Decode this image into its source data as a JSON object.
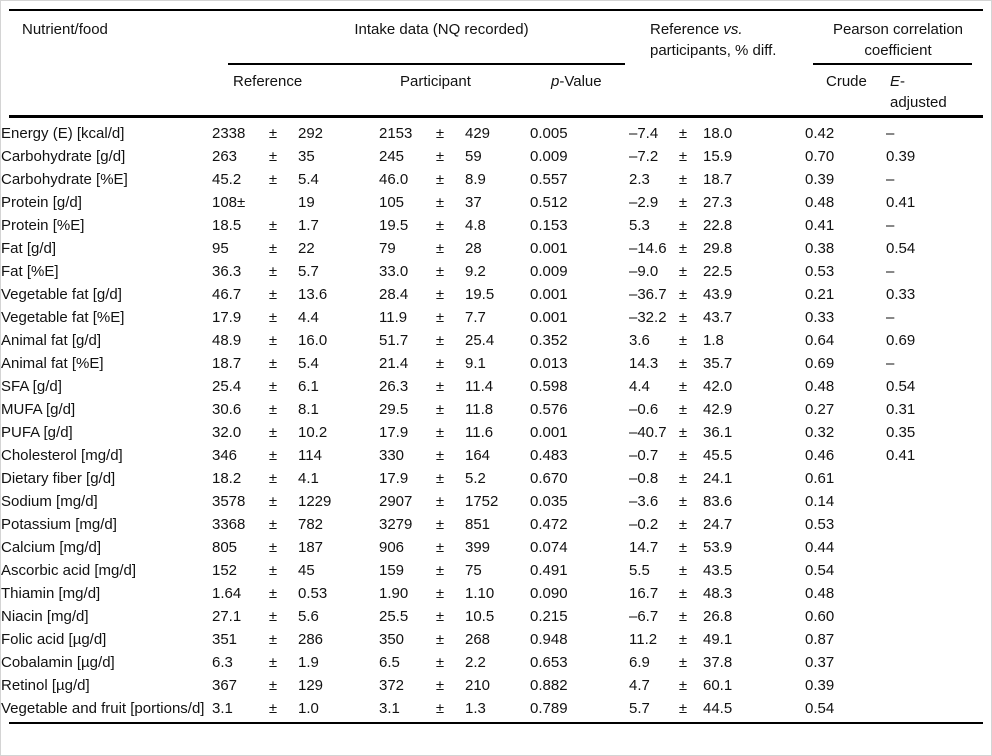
{
  "page": {
    "background": "#ffffff",
    "outer_border_color": "#d4d4d4",
    "rule_color": "#000000",
    "text_color": "#121212"
  },
  "header": {
    "nutrient_col": "Nutrient/food",
    "intake_group": "Intake data (NQ recorded)",
    "reference_col": "Reference",
    "participant_col": "Participant",
    "pvalue_italic": "p",
    "pvalue_rest": "-Value",
    "diff_line1_prefix": "Reference ",
    "diff_line1_italic": "vs.",
    "diff_line2": "participants, % diff.",
    "pearson_group": "Pearson correlation coefficient",
    "crude_col": "Crude",
    "eadj_line1_italic": "E",
    "eadj_line1_rest": "-",
    "eadj_line2": "adjusted"
  },
  "table": {
    "plus_minus_symbol": "±",
    "dash_placeholder": "–",
    "rows": [
      {
        "label": "Energy (E) [kcal/d]",
        "ref": {
          "v": "2338",
          "pm": "±",
          "sd": "292"
        },
        "part": {
          "v": "2153",
          "pm": "±",
          "sd": "429"
        },
        "p": "0.005",
        "diff": {
          "v": "–7.4",
          "pm": "±",
          "sd": "18.0"
        },
        "crude": "0.42",
        "eadj": "–"
      },
      {
        "label": "Carbohydrate [g/d]",
        "ref": {
          "v": "263",
          "pm": "±",
          "sd": "35"
        },
        "part": {
          "v": "245",
          "pm": "±",
          "sd": "59"
        },
        "p": "0.009",
        "diff": {
          "v": "–7.2",
          "pm": "±",
          "sd": "15.9"
        },
        "crude": "0.70",
        "eadj": "0.39"
      },
      {
        "label": "Carbohydrate [%E]",
        "ref": {
          "v": "45.2",
          "pm": "±",
          "sd": "5.4"
        },
        "part": {
          "v": "46.0",
          "pm": "±",
          "sd": "8.9"
        },
        "p": "0.557",
        "diff": {
          "v": "2.3",
          "pm": "±",
          "sd": "18.7"
        },
        "crude": "0.39",
        "eadj": "–"
      },
      {
        "label": "Protein [g/d]",
        "ref": {
          "v": "108±",
          "pm": "",
          "sd": "19"
        },
        "part": {
          "v": "105",
          "pm": "±",
          "sd": "37"
        },
        "p": "0.512",
        "diff": {
          "v": "–2.9",
          "pm": "±",
          "sd": "27.3"
        },
        "crude": "0.48",
        "eadj": "0.41"
      },
      {
        "label": "Protein [%E]",
        "ref": {
          "v": "18.5",
          "pm": "±",
          "sd": "1.7"
        },
        "part": {
          "v": "19.5",
          "pm": "±",
          "sd": "4.8"
        },
        "p": "0.153",
        "diff": {
          "v": "5.3",
          "pm": "±",
          "sd": "22.8"
        },
        "crude": "0.41",
        "eadj": "–"
      },
      {
        "label": "Fat [g/d]",
        "ref": {
          "v": "95",
          "pm": "±",
          "sd": "22"
        },
        "part": {
          "v": "79",
          "pm": "±",
          "sd": "28"
        },
        "p": "0.001",
        "diff": {
          "v": "–14.6",
          "pm": "±",
          "sd": "29.8"
        },
        "crude": "0.38",
        "eadj": "0.54"
      },
      {
        "label": "Fat [%E]",
        "ref": {
          "v": "36.3",
          "pm": "±",
          "sd": "5.7"
        },
        "part": {
          "v": "33.0",
          "pm": "±",
          "sd": "9.2"
        },
        "p": "0.009",
        "diff": {
          "v": "–9.0",
          "pm": "±",
          "sd": "22.5"
        },
        "crude": "0.53",
        "eadj": "–"
      },
      {
        "label": "Vegetable fat [g/d]",
        "ref": {
          "v": "46.7",
          "pm": "±",
          "sd": "13.6"
        },
        "part": {
          "v": "28.4",
          "pm": "±",
          "sd": "19.5"
        },
        "p": "0.001",
        "diff": {
          "v": "–36.7",
          "pm": "±",
          "sd": "43.9"
        },
        "crude": "0.21",
        "eadj": "0.33"
      },
      {
        "label": "Vegetable fat [%E]",
        "ref": {
          "v": "17.9",
          "pm": "±",
          "sd": "4.4"
        },
        "part": {
          "v": "11.9",
          "pm": "±",
          "sd": "7.7"
        },
        "p": "0.001",
        "diff": {
          "v": "–32.2",
          "pm": "±",
          "sd": "43.7"
        },
        "crude": "0.33",
        "eadj": "–"
      },
      {
        "label": "Animal fat [g/d]",
        "ref": {
          "v": "48.9",
          "pm": "±",
          "sd": "16.0"
        },
        "part": {
          "v": "51.7",
          "pm": "±",
          "sd": "25.4"
        },
        "p": "0.352",
        "diff": {
          "v": "3.6",
          "pm": "±",
          "sd": "1.8"
        },
        "crude": "0.64",
        "eadj": "0.69"
      },
      {
        "label": "Animal fat [%E]",
        "ref": {
          "v": "18.7",
          "pm": "±",
          "sd": "5.4"
        },
        "part": {
          "v": "21.4",
          "pm": "±",
          "sd": "9.1"
        },
        "p": "0.013",
        "diff": {
          "v": "14.3",
          "pm": "±",
          "sd": "35.7"
        },
        "crude": "0.69",
        "eadj": "–"
      },
      {
        "label": "SFA [g/d]",
        "ref": {
          "v": "25.4",
          "pm": "±",
          "sd": "6.1"
        },
        "part": {
          "v": "26.3",
          "pm": "±",
          "sd": "11.4"
        },
        "p": "0.598",
        "diff": {
          "v": "4.4",
          "pm": "±",
          "sd": "42.0"
        },
        "crude": "0.48",
        "eadj": "0.54"
      },
      {
        "label": "MUFA [g/d]",
        "ref": {
          "v": "30.6",
          "pm": "±",
          "sd": "8.1"
        },
        "part": {
          "v": "29.5",
          "pm": "±",
          "sd": "11.8"
        },
        "p": "0.576",
        "diff": {
          "v": "–0.6",
          "pm": "±",
          "sd": "42.9"
        },
        "crude": "0.27",
        "eadj": "0.31"
      },
      {
        "label": "PUFA [g/d]",
        "ref": {
          "v": "32.0",
          "pm": "±",
          "sd": "10.2"
        },
        "part": {
          "v": "17.9",
          "pm": "±",
          "sd": "11.6"
        },
        "p": "0.001",
        "diff": {
          "v": "–40.7",
          "pm": "±",
          "sd": "36.1"
        },
        "crude": "0.32",
        "eadj": "0.35"
      },
      {
        "label": "Cholesterol [mg/d]",
        "ref": {
          "v": "346",
          "pm": "±",
          "sd": "114"
        },
        "part": {
          "v": "330",
          "pm": "±",
          "sd": "164"
        },
        "p": "0.483",
        "diff": {
          "v": "–0.7",
          "pm": "±",
          "sd": "45.5"
        },
        "crude": "0.46",
        "eadj": "0.41"
      },
      {
        "label": "Dietary fiber [g/d]",
        "ref": {
          "v": "18.2",
          "pm": "±",
          "sd": "4.1"
        },
        "part": {
          "v": "17.9",
          "pm": "±",
          "sd": "5.2"
        },
        "p": "0.670",
        "diff": {
          "v": "–0.8",
          "pm": "±",
          "sd": "24.1"
        },
        "crude": "0.61",
        "eadj": ""
      },
      {
        "label": "Sodium [mg/d]",
        "ref": {
          "v": "3578",
          "pm": "±",
          "sd": "1229"
        },
        "part": {
          "v": "2907",
          "pm": "±",
          "sd": "1752"
        },
        "p": "0.035",
        "diff": {
          "v": "–3.6",
          "pm": "±",
          "sd": "83.6"
        },
        "crude": "0.14",
        "eadj": ""
      },
      {
        "label": "Potassium [mg/d]",
        "ref": {
          "v": "3368",
          "pm": "±",
          "sd": "782"
        },
        "part": {
          "v": "3279",
          "pm": "±",
          "sd": "851"
        },
        "p": "0.472",
        "diff": {
          "v": "–0.2",
          "pm": "±",
          "sd": "24.7"
        },
        "crude": "0.53",
        "eadj": ""
      },
      {
        "label": "Calcium [mg/d]",
        "ref": {
          "v": "805",
          "pm": "±",
          "sd": "187"
        },
        "part": {
          "v": "906",
          "pm": "±",
          "sd": "399"
        },
        "p": "0.074",
        "diff": {
          "v": "14.7",
          "pm": "±",
          "sd": "53.9"
        },
        "crude": "0.44",
        "eadj": ""
      },
      {
        "label": "Ascorbic acid [mg/d]",
        "ref": {
          "v": "152",
          "pm": "±",
          "sd": "45"
        },
        "part": {
          "v": "159",
          "pm": "±",
          "sd": "75"
        },
        "p": "0.491",
        "diff": {
          "v": "5.5",
          "pm": "±",
          "sd": "43.5"
        },
        "crude": "0.54",
        "eadj": ""
      },
      {
        "label": "Thiamin [mg/d]",
        "ref": {
          "v": "1.64",
          "pm": "±",
          "sd": "0.53"
        },
        "part": {
          "v": "1.90",
          "pm": "±",
          "sd": "1.10"
        },
        "p": "0.090",
        "diff": {
          "v": "16.7",
          "pm": "±",
          "sd": "48.3"
        },
        "crude": "0.48",
        "eadj": ""
      },
      {
        "label": "Niacin [mg/d]",
        "ref": {
          "v": "27.1",
          "pm": "±",
          "sd": "5.6"
        },
        "part": {
          "v": "25.5",
          "pm": "±",
          "sd": "10.5"
        },
        "p": "0.215",
        "diff": {
          "v": "–6.7",
          "pm": "±",
          "sd": "26.8"
        },
        "crude": "0.60",
        "eadj": ""
      },
      {
        "label": "Folic acid [µg/d]",
        "ref": {
          "v": "351",
          "pm": "±",
          "sd": "286"
        },
        "part": {
          "v": "350",
          "pm": "±",
          "sd": "268"
        },
        "p": "0.948",
        "diff": {
          "v": "11.2",
          "pm": "±",
          "sd": "49.1"
        },
        "crude": "0.87",
        "eadj": ""
      },
      {
        "label": "Cobalamin [µg/d]",
        "ref": {
          "v": "6.3",
          "pm": "±",
          "sd": "1.9"
        },
        "part": {
          "v": "6.5",
          "pm": "±",
          "sd": "2.2"
        },
        "p": "0.653",
        "diff": {
          "v": "6.9",
          "pm": "±",
          "sd": "37.8"
        },
        "crude": "0.37",
        "eadj": ""
      },
      {
        "label": "Retinol [µg/d]",
        "ref": {
          "v": "367",
          "pm": "±",
          "sd": "129"
        },
        "part": {
          "v": "372",
          "pm": "±",
          "sd": "210"
        },
        "p": "0.882",
        "diff": {
          "v": "4.7",
          "pm": "±",
          "sd": "60.1"
        },
        "crude": "0.39",
        "eadj": ""
      },
      {
        "label": "Vegetable and fruit [portions/d]",
        "ref": {
          "v": "3.1",
          "pm": "±",
          "sd": "1.0"
        },
        "part": {
          "v": "3.1",
          "pm": "±",
          "sd": "1.3"
        },
        "p": "0.789",
        "diff": {
          "v": "5.7",
          "pm": "±",
          "sd": "44.5"
        },
        "crude": "0.54",
        "eadj": ""
      }
    ]
  }
}
